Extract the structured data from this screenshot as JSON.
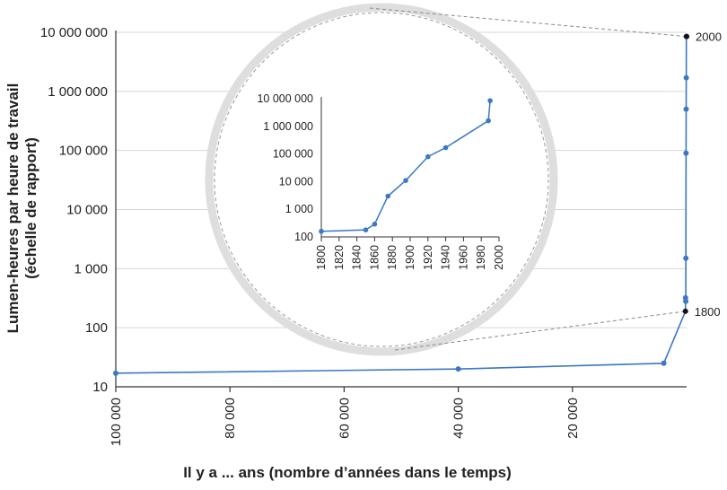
{
  "chart_data": [
    {
      "type": "line",
      "title": "",
      "xlabel": "Il y a ... ans (nombre d’années dans le temps)",
      "ylabel": [
        "Lumen-heures par heure de travail",
        "(échelle de rapport)"
      ],
      "x_reversed": true,
      "xlim": [
        100000,
        0
      ],
      "xticks": [
        100000,
        80000,
        60000,
        40000,
        20000
      ],
      "xtick_labels": [
        "100 000",
        "80 000",
        "60 000",
        "40 000",
        "20 000"
      ],
      "y_scale": "log",
      "ylim": [
        10,
        10000000
      ],
      "yticks": [
        10,
        100,
        1000,
        10000,
        100000,
        1000000,
        10000000
      ],
      "ytick_labels": [
        "10",
        "100",
        "1 000",
        "10 000",
        "100 000",
        "1 000 000",
        "10 000 000"
      ],
      "grid": "horizontal",
      "series": [
        {
          "color": "#3c78c3",
          "x": [
            100000,
            40000,
            4000,
            200,
            190,
            150,
            130,
            100,
            80,
            60,
            50,
            11,
            0
          ],
          "y": [
            17,
            20,
            25,
            190,
            320,
            280,
            1500,
            90000,
            500000,
            1700000,
            8500000,
            8500000,
            8500000
          ]
        }
      ],
      "annotations": [
        {
          "text": "1800",
          "x": 200,
          "y": 190
        },
        {
          "text": "2000",
          "x": 0,
          "y": 8500000
        }
      ]
    },
    {
      "type": "line",
      "title": "",
      "inset": true,
      "xlim": [
        1800,
        2000
      ],
      "xticks": [
        1800,
        1820,
        1840,
        1860,
        1880,
        1900,
        1920,
        1940,
        1960,
        1980,
        2000
      ],
      "xtick_labels": [
        "1800",
        "1820",
        "1840",
        "1860",
        "1880",
        "1900",
        "1920",
        "1940",
        "1960",
        "1980",
        "2000"
      ],
      "y_scale": "log",
      "ylim": [
        100,
        10000000
      ],
      "yticks": [
        100,
        1000,
        10000,
        100000,
        1000000,
        10000000
      ],
      "ytick_labels": [
        "100",
        "1 000",
        "10 000",
        "100 000",
        "1 000 000",
        "10 000 000"
      ],
      "series": [
        {
          "color": "#3c78c3",
          "x": [
            1800,
            1850,
            1860,
            1875,
            1895,
            1920,
            1940,
            1988,
            1990
          ],
          "y": [
            160,
            180,
            290,
            3000,
            11000,
            80000,
            170000,
            1600000,
            8500000
          ]
        }
      ]
    }
  ]
}
